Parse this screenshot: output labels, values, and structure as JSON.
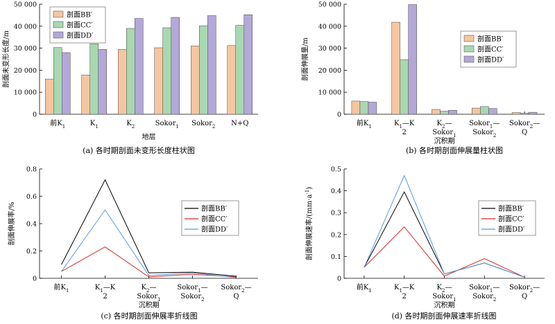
{
  "chart_data": [
    {
      "type": "bar",
      "caption": "(a) 各时期剖面未变形长度柱状图",
      "xlabel": "地层",
      "ylabel": "剖面未变形长度/m",
      "ylim": [
        0,
        50000
      ],
      "yticks": [
        "0",
        "10 000",
        "20 000",
        "30 000",
        "40 000",
        "50 000"
      ],
      "categories": [
        [
          "前K",
          "1",
          ""
        ],
        [
          "K",
          "1",
          ""
        ],
        [
          "K",
          "2",
          ""
        ],
        [
          "Sokor",
          "1",
          ""
        ],
        [
          "Sokor",
          "2",
          ""
        ],
        [
          "N+Q",
          "",
          ""
        ]
      ],
      "legend_position": "top-left",
      "series": [
        {
          "name": "剖面BB′",
          "color": "#f5c6a0",
          "values": [
            16000,
            17800,
            29500,
            30200,
            31000,
            31200
          ]
        },
        {
          "name": "剖面CC′",
          "color": "#a8d8b0",
          "values": [
            30300,
            32000,
            39000,
            39300,
            40200,
            40400
          ]
        },
        {
          "name": "剖面DD′",
          "color": "#b3a8d8",
          "values": [
            28000,
            29500,
            43500,
            44000,
            44800,
            45200
          ]
        }
      ]
    },
    {
      "type": "bar",
      "caption": "(b) 各时期剖面伸展量柱状图",
      "ylabel": "剖面伸展量/m",
      "ylim": [
        0,
        50000
      ],
      "yticks": [
        "0",
        "10 000",
        "20 000",
        "30 000",
        "40 000",
        "50 000"
      ],
      "categories": [
        [
          "前K",
          "1",
          ""
        ],
        [
          "K",
          "1",
          "—K",
          "2",
          ""
        ],
        [
          "K",
          "2",
          "—",
          "Sokor",
          "1",
          "沉积期"
        ],
        [
          "Sokor",
          "1",
          "—",
          "Sokor",
          "2",
          ""
        ],
        [
          "Sokor",
          "2",
          "—",
          "Q",
          "",
          ""
        ]
      ],
      "legend_position": "right",
      "series": [
        {
          "name": "剖面BB′",
          "color": "#f5c6a0",
          "values": [
            6000,
            41800,
            2200,
            2800,
            800
          ]
        },
        {
          "name": "剖面CC′",
          "color": "#a8d8b0",
          "values": [
            5800,
            24800,
            1400,
            3500,
            500
          ]
        },
        {
          "name": "剖面DD′",
          "color": "#b3a8d8",
          "values": [
            5500,
            49800,
            1800,
            2600,
            900
          ]
        }
      ]
    },
    {
      "type": "line",
      "caption": "(c) 各时期剖面伸展率折线图",
      "ylabel": "剖面伸展率/%",
      "ylim": [
        0,
        0.8
      ],
      "yticks": [
        "0",
        "0.2",
        "0.4",
        "0.6",
        "0.8"
      ],
      "categories": [
        [
          "前K",
          "1",
          ""
        ],
        [
          "K",
          "1",
          "—K",
          "2",
          ""
        ],
        [
          "K",
          "2",
          "—",
          "Sokor",
          "1",
          "沉积期"
        ],
        [
          "Sokor",
          "1",
          "—",
          "Sokor",
          "2",
          ""
        ],
        [
          "Sokor",
          "2",
          "—",
          "Q",
          "",
          ""
        ]
      ],
      "legend_position": "right",
      "series": [
        {
          "name": "剖面BB′",
          "color": "#000000",
          "values": [
            0.1,
            0.72,
            0.04,
            0.045,
            0.015
          ]
        },
        {
          "name": "剖面CC′",
          "color": "#d62728",
          "values": [
            0.05,
            0.23,
            0.01,
            0.03,
            0.01
          ]
        },
        {
          "name": "剖面DD′",
          "color": "#5b9bd5",
          "values": [
            0.05,
            0.5,
            0.02,
            0.04,
            0.005
          ]
        }
      ]
    },
    {
      "type": "line",
      "caption": "(d) 各时期剖面伸展速率折线图",
      "ylabel": "剖面伸展速率/(mm·a",
      "ylabel_sup": "-1",
      "ylabel_end": ")",
      "ylim": [
        0,
        0.5
      ],
      "yticks": [
        "0",
        "0.1",
        "0.2",
        "0.3",
        "0.4",
        "0.5"
      ],
      "categories": [
        [
          "前K",
          "1",
          ""
        ],
        [
          "K",
          "1",
          "—K",
          "2",
          ""
        ],
        [
          "K",
          "2",
          "—",
          "Sokor",
          "1",
          "沉积期"
        ],
        [
          "Sokor",
          "1",
          "—",
          "Sokor",
          "2",
          ""
        ],
        [
          "Sokor",
          "2",
          "—",
          "Q",
          "",
          ""
        ]
      ],
      "legend_position": "right",
      "series": [
        {
          "name": "剖面BB′",
          "color": "#000000",
          "values": [
            0.05,
            0.395,
            0.02,
            0.07,
            0.005
          ]
        },
        {
          "name": "剖面CC′",
          "color": "#d62728",
          "values": [
            0.05,
            0.235,
            0.01,
            0.09,
            0.005
          ]
        },
        {
          "name": "剖面DD′",
          "color": "#5b9bd5",
          "values": [
            0.05,
            0.47,
            0.02,
            0.07,
            0.005
          ]
        }
      ]
    }
  ]
}
